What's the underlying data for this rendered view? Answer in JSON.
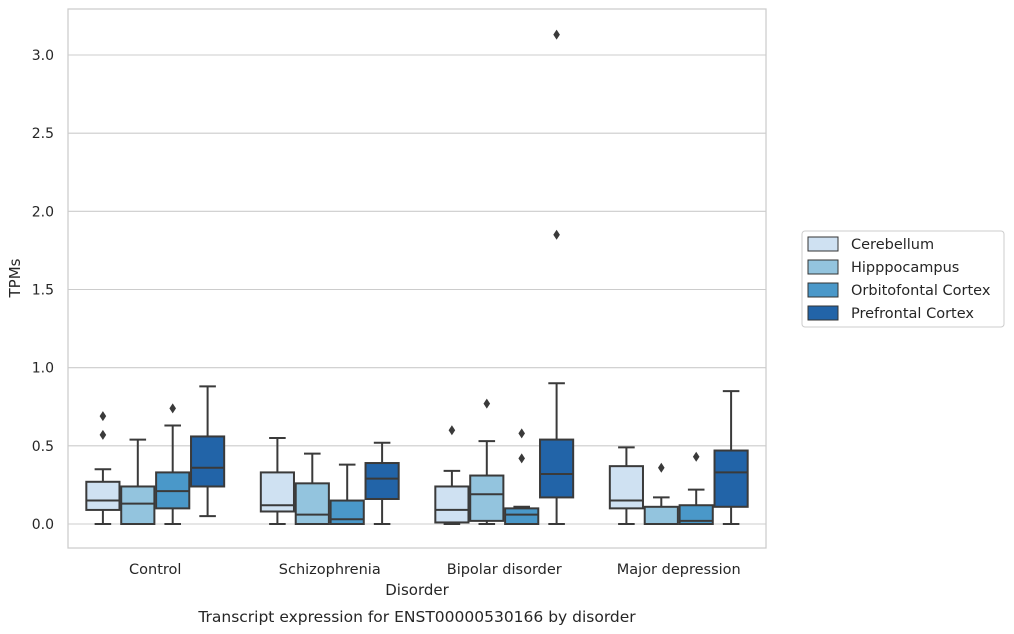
{
  "chart_data": {
    "type": "box",
    "title": "",
    "caption": "Transcript expression for ENST00000530166 by disorder",
    "xlabel": "Disorder",
    "ylabel": "TPMs",
    "ylim": [
      -0.15,
      3.3
    ],
    "yticks": [
      0.0,
      0.5,
      1.0,
      1.5,
      2.0,
      2.5,
      3.0
    ],
    "ytick_labels": [
      "0.0",
      "0.5",
      "1.0",
      "1.5",
      "2.0",
      "2.5",
      "3.0"
    ],
    "grid": "horizontal",
    "legend_position": "right",
    "categories": [
      "Control",
      "Schizophrenia",
      "Bipolar disorder",
      "Major depression"
    ],
    "series": [
      {
        "name": "Cerebellum",
        "color": "#cfe1f2",
        "boxes": [
          {
            "min": 0.0,
            "q1": 0.09,
            "median": 0.15,
            "q3": 0.27,
            "max": 0.35,
            "outliers": [
              0.57,
              0.69
            ]
          },
          {
            "min": 0.0,
            "q1": 0.08,
            "median": 0.12,
            "q3": 0.33,
            "max": 0.55,
            "outliers": []
          },
          {
            "min": 0.0,
            "q1": 0.01,
            "median": 0.09,
            "q3": 0.24,
            "max": 0.34,
            "outliers": [
              0.6
            ]
          },
          {
            "min": 0.0,
            "q1": 0.1,
            "median": 0.15,
            "q3": 0.37,
            "max": 0.49,
            "outliers": []
          }
        ]
      },
      {
        "name": "Hipppocampus",
        "color": "#93c4de",
        "boxes": [
          {
            "min": 0.0,
            "q1": 0.0,
            "median": 0.13,
            "q3": 0.24,
            "max": 0.54,
            "outliers": []
          },
          {
            "min": 0.0,
            "q1": 0.0,
            "median": 0.06,
            "q3": 0.26,
            "max": 0.45,
            "outliers": []
          },
          {
            "min": 0.0,
            "q1": 0.02,
            "median": 0.19,
            "q3": 0.31,
            "max": 0.53,
            "outliers": [
              0.77
            ]
          },
          {
            "min": 0.0,
            "q1": 0.0,
            "median": 0.0,
            "q3": 0.11,
            "max": 0.17,
            "outliers": [
              0.36
            ]
          }
        ]
      },
      {
        "name": "Orbitofontal Cortex",
        "color": "#4a98c9",
        "boxes": [
          {
            "min": 0.0,
            "q1": 0.1,
            "median": 0.21,
            "q3": 0.33,
            "max": 0.63,
            "outliers": [
              0.74
            ]
          },
          {
            "min": 0.0,
            "q1": 0.0,
            "median": 0.03,
            "q3": 0.15,
            "max": 0.38,
            "outliers": []
          },
          {
            "min": 0.0,
            "q1": 0.0,
            "median": 0.06,
            "q3": 0.1,
            "max": 0.11,
            "outliers": [
              0.42,
              0.58
            ]
          },
          {
            "min": 0.0,
            "q1": 0.0,
            "median": 0.02,
            "q3": 0.12,
            "max": 0.22,
            "outliers": [
              0.43
            ]
          }
        ]
      },
      {
        "name": "Prefrontal Cortex",
        "color": "#2264a8",
        "boxes": [
          {
            "min": 0.05,
            "q1": 0.24,
            "median": 0.36,
            "q3": 0.56,
            "max": 0.88,
            "outliers": []
          },
          {
            "min": 0.0,
            "q1": 0.16,
            "median": 0.29,
            "q3": 0.39,
            "max": 0.52,
            "outliers": []
          },
          {
            "min": 0.0,
            "q1": 0.17,
            "median": 0.32,
            "q3": 0.54,
            "max": 0.9,
            "outliers": [
              1.85,
              3.13
            ]
          },
          {
            "min": 0.0,
            "q1": 0.11,
            "median": 0.33,
            "q3": 0.47,
            "max": 0.85,
            "outliers": []
          }
        ]
      }
    ]
  }
}
